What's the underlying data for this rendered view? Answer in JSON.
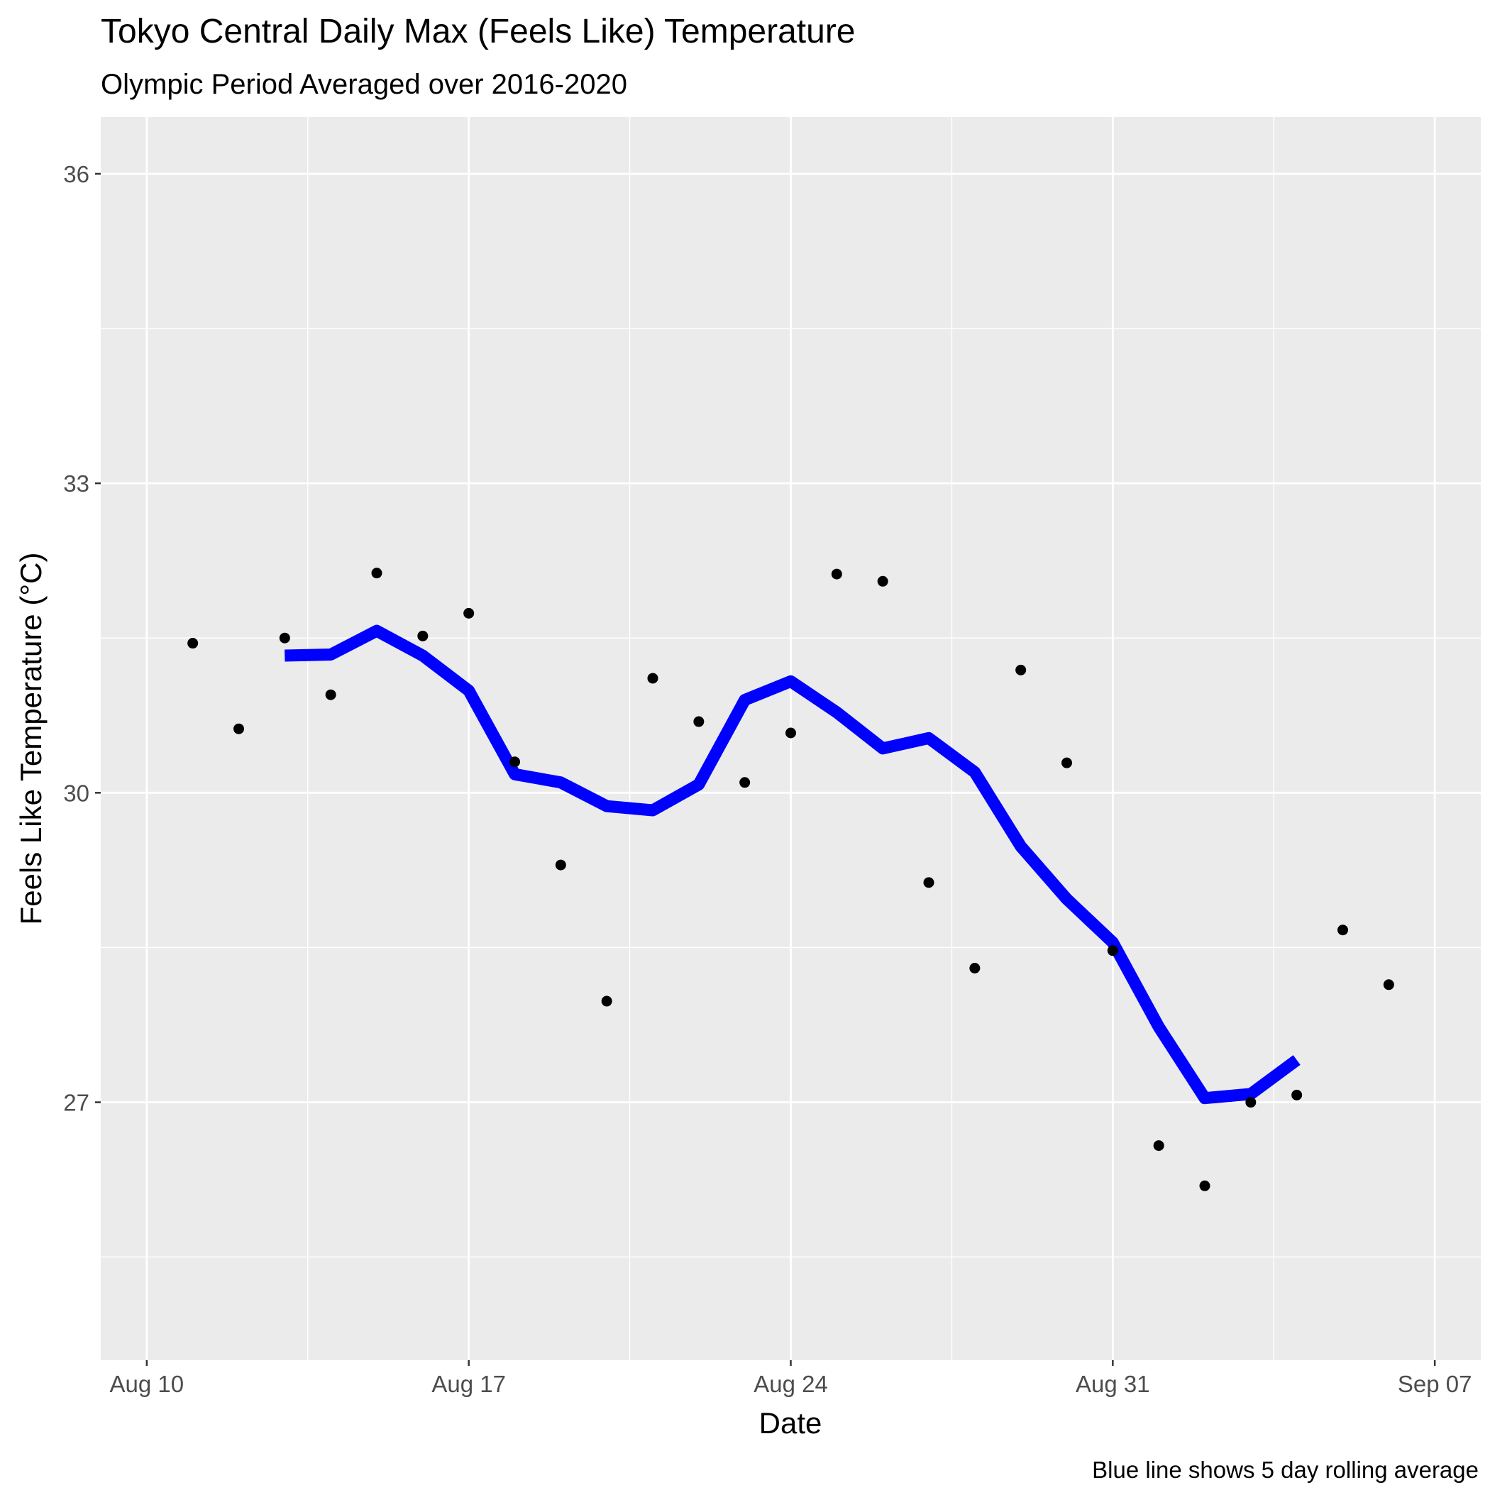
{
  "chart_data": {
    "type": "scatter",
    "title": "Tokyo Central Daily Max (Feels Like) Temperature",
    "subtitle": "Olympic Period Averaged over 2016-2020",
    "xlabel": "Date",
    "ylabel": "Feels Like Temperature (°C)",
    "caption": "Blue line shows 5 day rolling average",
    "x_axis": {
      "type": "date",
      "range": [
        "2021-08-09",
        "2021-09-08"
      ],
      "ticks": [
        {
          "date": "2021-08-10",
          "label": "Aug 10"
        },
        {
          "date": "2021-08-17",
          "label": "Aug 17"
        },
        {
          "date": "2021-08-24",
          "label": "Aug 24"
        },
        {
          "date": "2021-08-31",
          "label": "Aug 31"
        },
        {
          "date": "2021-09-07",
          "label": "Sep 07"
        }
      ]
    },
    "y_axis": {
      "range": [
        24.5,
        36.55
      ],
      "ticks": [
        27,
        30,
        33,
        36
      ],
      "minor_ticks": [
        25.5,
        28.5,
        31.5,
        34.5
      ]
    },
    "grid": true,
    "colors": {
      "panel": "#EBEBEB",
      "grid": "#FFFFFF",
      "points": "#000000",
      "rolling_line": "#0000FF"
    },
    "series": [
      {
        "kind": "points",
        "x": [
          "2021-08-11",
          "2021-08-12",
          "2021-08-13",
          "2021-08-14",
          "2021-08-15",
          "2021-08-16",
          "2021-08-17",
          "2021-08-18",
          "2021-08-19",
          "2021-08-20",
          "2021-08-21",
          "2021-08-22",
          "2021-08-23",
          "2021-08-24",
          "2021-08-25",
          "2021-08-26",
          "2021-08-27",
          "2021-08-28",
          "2021-08-29",
          "2021-08-30",
          "2021-08-31",
          "2021-09-01",
          "2021-09-02",
          "2021-09-03",
          "2021-09-04",
          "2021-09-05",
          "2021-09-06"
        ],
        "y": [
          31.45,
          30.62,
          31.5,
          30.95,
          32.13,
          31.52,
          31.74,
          30.3,
          29.3,
          27.98,
          31.11,
          30.69,
          30.1,
          30.58,
          32.12,
          32.05,
          29.13,
          28.3,
          31.19,
          30.29,
          28.47,
          26.58,
          26.19,
          27.0,
          27.07,
          28.67,
          28.14
        ]
      },
      {
        "kind": "line",
        "x": [
          "2021-08-13",
          "2021-08-14",
          "2021-08-15",
          "2021-08-16",
          "2021-08-17",
          "2021-08-18",
          "2021-08-19",
          "2021-08-20",
          "2021-08-21",
          "2021-08-22",
          "2021-08-23",
          "2021-08-24",
          "2021-08-25",
          "2021-08-26",
          "2021-08-27",
          "2021-08-28",
          "2021-08-29",
          "2021-08-30",
          "2021-08-31",
          "2021-09-01",
          "2021-09-02",
          "2021-09-03",
          "2021-09-04"
        ],
        "y": [
          31.33,
          31.34,
          31.57,
          31.33,
          30.99,
          30.18,
          30.1,
          29.87,
          29.83,
          30.08,
          30.9,
          31.08,
          30.78,
          30.43,
          30.53,
          30.2,
          29.48,
          28.97,
          28.55,
          27.73,
          27.04,
          27.08,
          27.41
        ]
      }
    ]
  }
}
